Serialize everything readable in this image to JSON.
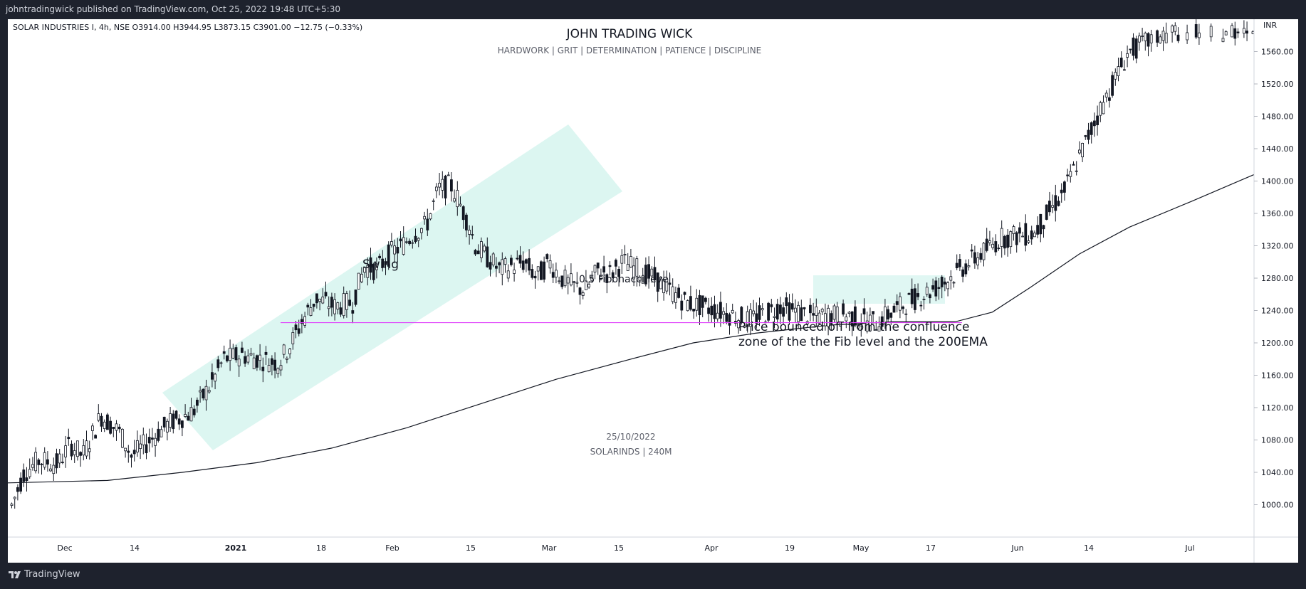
{
  "header": {
    "publisher_line": "johntradingwick published on TradingView.com, Oct 25, 2022 19:48 UTC+5:30"
  },
  "footer": {
    "brand": "TradingView"
  },
  "chart_data": {
    "type": "candlestick",
    "symbol_line": "SOLAR INDUSTRIES I, 4h, NSE  O3914.00  H3944.95  L3873.15  C3901.00  −12.75 (−0.33%)",
    "title": "JOHN TRADING WICK",
    "subtitle": "HARDWORK   |   GRIT |   DETERMINATION   |   PATIENCE   |   DISCIPLINE",
    "currency": "INR",
    "watermark": [
      "25/10/2022",
      "SOLARINDS | 240M"
    ],
    "ylim": [
      960,
      1600
    ],
    "y_ticks": [
      1000,
      1040,
      1080,
      1120,
      1160,
      1200,
      1240,
      1280,
      1320,
      1360,
      1400,
      1440,
      1480,
      1520,
      1560
    ],
    "x_tick_labels": [
      "Dec",
      "14",
      "2021",
      "18",
      "Feb",
      "15",
      "Mar",
      "15",
      "Apr",
      "19",
      "May",
      "17",
      "Jun",
      "14",
      "Jul"
    ],
    "annotations": {
      "swing": "Swing",
      "fib": "0.5 Fibonacci level",
      "note_line1": "Price bounced off from the confluence",
      "note_line2": "zone of the the Fib level and the 200EMA"
    },
    "fib_level": 1225,
    "ema200": [
      [
        0,
        1027
      ],
      [
        0.08,
        1030
      ],
      [
        0.14,
        1040
      ],
      [
        0.2,
        1052
      ],
      [
        0.26,
        1070
      ],
      [
        0.32,
        1095
      ],
      [
        0.38,
        1125
      ],
      [
        0.44,
        1155
      ],
      [
        0.5,
        1180
      ],
      [
        0.55,
        1200
      ],
      [
        0.6,
        1212
      ],
      [
        0.66,
        1222
      ],
      [
        0.71,
        1226
      ],
      [
        0.76,
        1226
      ],
      [
        0.79,
        1238
      ],
      [
        0.82,
        1268
      ],
      [
        0.86,
        1310
      ],
      [
        0.9,
        1343
      ],
      [
        0.95,
        1375
      ],
      [
        1.0,
        1408
      ]
    ],
    "price_path": [
      [
        0,
        990
      ],
      [
        0.025,
        1040
      ],
      [
        0.05,
        1055
      ],
      [
        0.08,
        1050
      ],
      [
        0.1,
        1075
      ],
      [
        0.12,
        1060
      ],
      [
        0.15,
        1110
      ],
      [
        0.18,
        1090
      ],
      [
        0.2,
        1060
      ],
      [
        0.23,
        1080
      ],
      [
        0.26,
        1100
      ],
      [
        0.3,
        1115
      ],
      [
        0.33,
        1150
      ],
      [
        0.35,
        1180
      ],
      [
        0.38,
        1185
      ],
      [
        0.41,
        1180
      ],
      [
        0.44,
        1175
      ],
      [
        0.46,
        1200
      ],
      [
        0.48,
        1230
      ],
      [
        0.5,
        1255
      ],
      [
        0.53,
        1245
      ],
      [
        0.56,
        1250
      ],
      [
        0.58,
        1295
      ],
      [
        0.6,
        1290
      ],
      [
        0.62,
        1310
      ],
      [
        0.64,
        1320
      ],
      [
        0.66,
        1335
      ],
      [
        0.68,
        1345
      ],
      [
        0.7,
        1390
      ],
      [
        0.72,
        1395
      ],
      [
        0.73,
        1380
      ],
      [
        0.75,
        1345
      ],
      [
        0.76,
        1320
      ],
      [
        0.78,
        1305
      ],
      [
        0.8,
        1290
      ],
      [
        0.82,
        1295
      ],
      [
        0.84,
        1300
      ],
      [
        0.86,
        1280
      ],
      [
        0.88,
        1300
      ],
      [
        0.9,
        1280
      ],
      [
        0.92,
        1270
      ],
      [
        0.94,
        1265
      ],
      [
        0.96,
        1290
      ],
      [
        0.98,
        1285
      ],
      [
        1.0,
        1300
      ]
    ],
    "price_path_2": [
      [
        0,
        1300
      ],
      [
        0.05,
        1280
      ],
      [
        0.1,
        1250
      ],
      [
        0.15,
        1240
      ],
      [
        0.2,
        1228
      ],
      [
        0.25,
        1245
      ],
      [
        0.3,
        1232
      ],
      [
        0.35,
        1235
      ],
      [
        0.4,
        1225
      ],
      [
        0.45,
        1250
      ],
      [
        0.5,
        1270
      ],
      [
        0.55,
        1300
      ],
      [
        0.6,
        1330
      ],
      [
        0.65,
        1335
      ],
      [
        0.7,
        1390
      ],
      [
        0.75,
        1480
      ],
      [
        0.8,
        1560
      ],
      [
        0.85,
        1580
      ],
      [
        0.9,
        1590
      ],
      [
        0.95,
        1585
      ],
      [
        1.0,
        1590
      ]
    ]
  }
}
